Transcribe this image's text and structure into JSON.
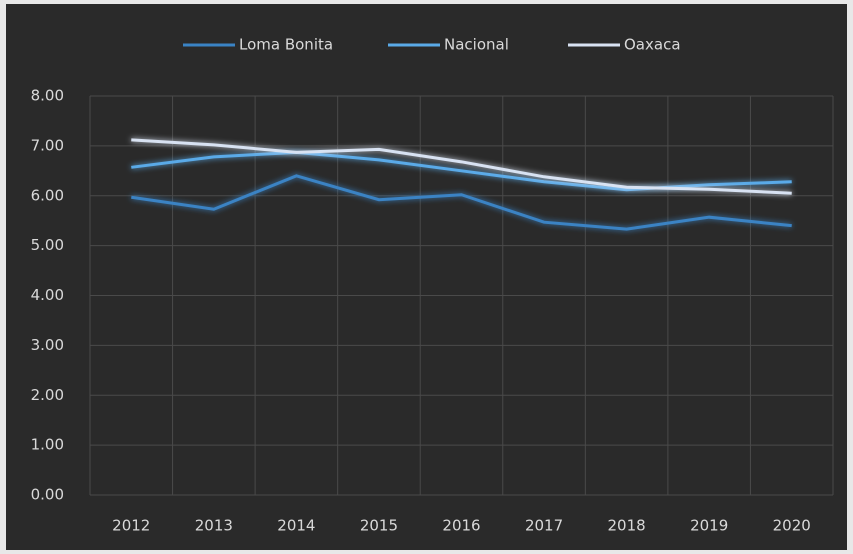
{
  "chart_data": {
    "type": "line",
    "categories": [
      "2012",
      "2013",
      "2014",
      "2015",
      "2016",
      "2017",
      "2018",
      "2019",
      "2020"
    ],
    "series": [
      {
        "name": "Loma Bonita",
        "color": "#3a83c4",
        "values": [
          5.97,
          5.73,
          6.4,
          5.92,
          6.02,
          5.47,
          5.33,
          5.57,
          5.4
        ]
      },
      {
        "name": "Nacional",
        "color": "#5aaae8",
        "values": [
          6.57,
          6.78,
          6.87,
          6.72,
          6.5,
          6.28,
          6.12,
          6.22,
          6.28
        ]
      },
      {
        "name": "Oaxaca",
        "color": "#d8e2f2",
        "values": [
          7.12,
          7.02,
          6.87,
          6.93,
          6.68,
          6.38,
          6.17,
          6.13,
          6.05
        ]
      }
    ],
    "ylim": [
      0,
      8
    ],
    "yticks": [
      {
        "value": 0,
        "label": "0.00"
      },
      {
        "value": 1,
        "label": "1.00"
      },
      {
        "value": 2,
        "label": "2.00"
      },
      {
        "value": 3,
        "label": "3.00"
      },
      {
        "value": 4,
        "label": "4.00"
      },
      {
        "value": 5,
        "label": "5.00"
      },
      {
        "value": 6,
        "label": "6.00"
      },
      {
        "value": 7,
        "label": "7.00"
      },
      {
        "value": 8,
        "label": "8.00"
      }
    ],
    "grid": true,
    "legend": "top"
  }
}
